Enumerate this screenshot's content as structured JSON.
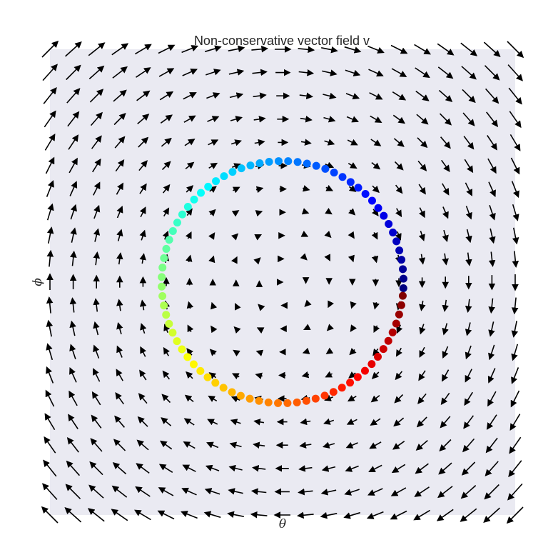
{
  "chart_data": {
    "type": "scatter",
    "title": "Non-conservative vector field v",
    "xlabel": "θ",
    "ylabel": "ϕ",
    "tick_labels_shown": false,
    "grid": false,
    "background": "#eaeaf2",
    "xlim": [
      -1,
      1
    ],
    "ylim": [
      -1,
      1
    ],
    "vector_field": {
      "description_formula": "rotation about center",
      "grid_n": 21,
      "arrow_color": "#000000"
    },
    "circle_trajectory": {
      "center": [
        0,
        0
      ],
      "radius": 0.52,
      "n_points": 80,
      "colormap": "jet",
      "point_count_shown": 80
    }
  }
}
